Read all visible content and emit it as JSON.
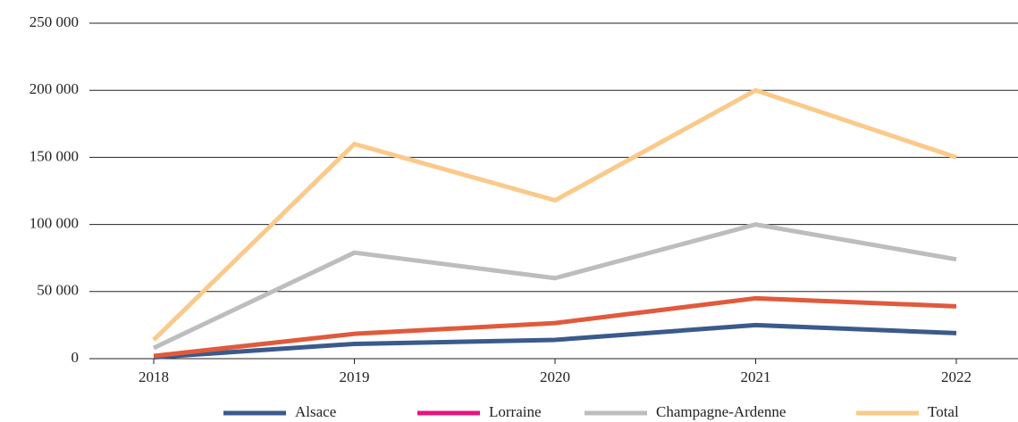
{
  "chart_data": {
    "type": "line",
    "categories": [
      "2018",
      "2019",
      "2020",
      "2021",
      "2022"
    ],
    "series": [
      {
        "name": "Alsace",
        "color": "#3b5a8c",
        "values": [
          1000,
          11000,
          14000,
          25000,
          19000
        ]
      },
      {
        "name": "Lorraine",
        "color": "#e05a3c",
        "legend_color": "#e6157f",
        "values": [
          2000,
          18500,
          26500,
          45000,
          39000
        ]
      },
      {
        "name": "Champagne-Ardenne",
        "color": "#bdbdbd",
        "values": [
          8000,
          79000,
          60000,
          100000,
          74000
        ]
      },
      {
        "name": "Total",
        "color": "#fbc98a",
        "values": [
          14000,
          160000,
          118000,
          200000,
          150000
        ]
      }
    ],
    "ylim": [
      0,
      250000
    ],
    "yticks": [
      0,
      {
        "value": 50000,
        "label": "50 000"
      },
      {
        "value": 100000,
        "label": "100 000"
      },
      {
        "value": 150000,
        "label": "150 000"
      },
      {
        "value": 200000,
        "label": "200 000"
      },
      {
        "value": 250000,
        "label": "250 000"
      }
    ],
    "grid": true,
    "legend": "bottom"
  }
}
